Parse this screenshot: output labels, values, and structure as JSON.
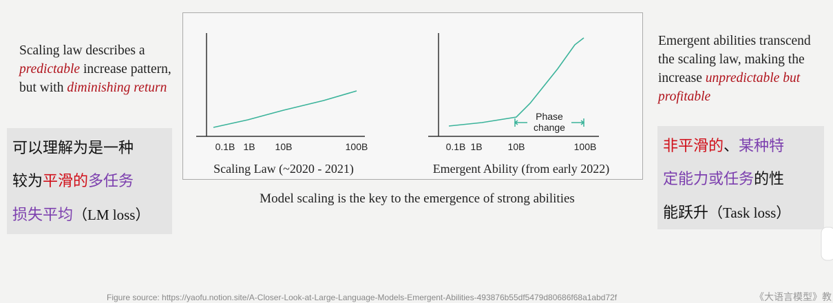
{
  "left_note": {
    "segments": [
      "Scaling law describes a ",
      "predictable",
      " increase pattern, but with ",
      "diminishing return"
    ]
  },
  "left_box": {
    "lines": [
      [
        "可以理解为是一种"
      ],
      [
        "较为",
        "平滑的",
        "多任务"
      ],
      [
        "损失平均",
        "（LM loss）"
      ]
    ]
  },
  "figure": {
    "left_chart": {
      "xticks": [
        "0.1B",
        "1B",
        "10B",
        "100B"
      ],
      "caption": "Scaling Law (~2020 - 2021)"
    },
    "right_chart": {
      "xticks": [
        "0.1B",
        "1B",
        "10B",
        "100B"
      ],
      "annotation": [
        "Phase",
        "change"
      ],
      "caption": "Emergent Ability (from early 2022)"
    },
    "caption": "Model scaling is the key to the emergence of strong abilities"
  },
  "right_note": {
    "segments": [
      "Emergent abilities transcend the scaling law, making the increase ",
      "unpredictable but profitable"
    ]
  },
  "right_box": {
    "lines": [
      [
        "非平滑的",
        "、",
        "某种特"
      ],
      [
        "定能力或任务",
        "的性"
      ],
      [
        "能跃升",
        "（Task loss）"
      ]
    ]
  },
  "footer": {
    "source": "Figure source:  https://yaofu.notion.site/A-Closer-Look-at-Large-Language-Models-Emergent-Abilities-493876b55df5479d80686f68a1abd72f",
    "book": "《大语言模型》教"
  }
}
